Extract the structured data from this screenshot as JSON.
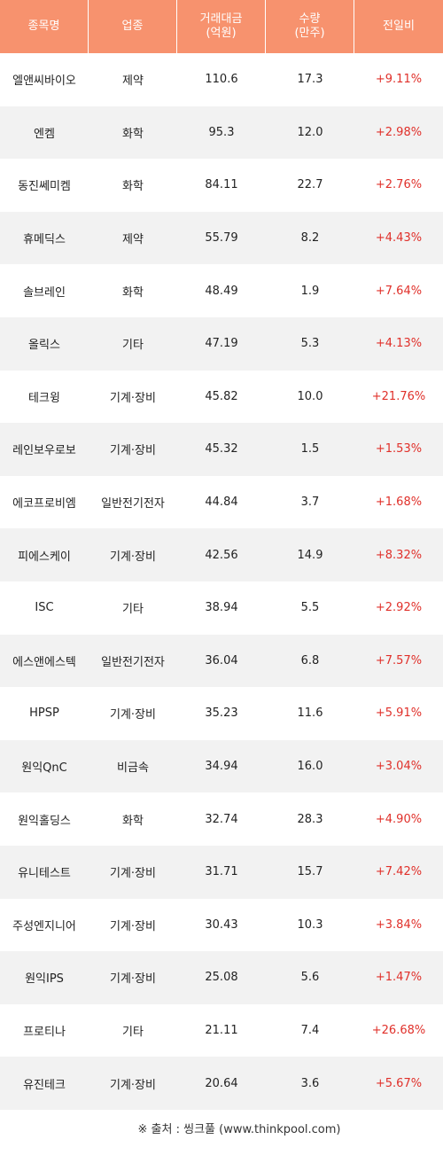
{
  "header": {
    "name": "종목명",
    "sector": "업종",
    "amount": "거래대금\n(억원)",
    "volume": "수량\n(만주)",
    "change": "전일비"
  },
  "rows": [
    {
      "name": "엘앤씨바이오",
      "sector": "제약",
      "amount": "110.6",
      "volume": "17.3",
      "change": "+9.11%"
    },
    {
      "name": "엔켐",
      "sector": "화학",
      "amount": "95.3",
      "volume": "12.0",
      "change": "+2.98%"
    },
    {
      "name": "동진쎄미켐",
      "sector": "화학",
      "amount": "84.11",
      "volume": "22.7",
      "change": "+2.76%"
    },
    {
      "name": "휴메딕스",
      "sector": "제약",
      "amount": "55.79",
      "volume": "8.2",
      "change": "+4.43%"
    },
    {
      "name": "솔브레인",
      "sector": "화학",
      "amount": "48.49",
      "volume": "1.9",
      "change": "+7.64%"
    },
    {
      "name": "올릭스",
      "sector": "기타",
      "amount": "47.19",
      "volume": "5.3",
      "change": "+4.13%"
    },
    {
      "name": "테크윙",
      "sector": "기계·장비",
      "amount": "45.82",
      "volume": "10.0",
      "change": "+21.76%"
    },
    {
      "name": "레인보우로보",
      "sector": "기계·장비",
      "amount": "45.32",
      "volume": "1.5",
      "change": "+1.53%"
    },
    {
      "name": "에코프로비엠",
      "sector": "일반전기전자",
      "amount": "44.84",
      "volume": "3.7",
      "change": "+1.68%"
    },
    {
      "name": "피에스케이",
      "sector": "기계·장비",
      "amount": "42.56",
      "volume": "14.9",
      "change": "+8.32%"
    },
    {
      "name": "ISC",
      "sector": "기타",
      "amount": "38.94",
      "volume": "5.5",
      "change": "+2.92%"
    },
    {
      "name": "에스앤에스텍",
      "sector": "일반전기전자",
      "amount": "36.04",
      "volume": "6.8",
      "change": "+7.57%"
    },
    {
      "name": "HPSP",
      "sector": "기계·장비",
      "amount": "35.23",
      "volume": "11.6",
      "change": "+5.91%"
    },
    {
      "name": "원익QnC",
      "sector": "비금속",
      "amount": "34.94",
      "volume": "16.0",
      "change": "+3.04%"
    },
    {
      "name": "원익홀딩스",
      "sector": "화학",
      "amount": "32.74",
      "volume": "28.3",
      "change": "+4.90%"
    },
    {
      "name": "유니테스트",
      "sector": "기계·장비",
      "amount": "31.71",
      "volume": "15.7",
      "change": "+7.42%"
    },
    {
      "name": "주성엔지니어",
      "sector": "기계·장비",
      "amount": "30.43",
      "volume": "10.3",
      "change": "+3.84%"
    },
    {
      "name": "원익IPS",
      "sector": "기계·장비",
      "amount": "25.08",
      "volume": "5.6",
      "change": "+1.47%"
    },
    {
      "name": "프로티나",
      "sector": "기타",
      "amount": "21.11",
      "volume": "7.4",
      "change": "+26.68%"
    },
    {
      "name": "유진테크",
      "sector": "기계·장비",
      "amount": "20.64",
      "volume": "3.6",
      "change": "+5.67%"
    }
  ],
  "footer": {
    "source": "※ 출처 : 씽크풀 (www.thinkpool.com)"
  },
  "colors": {
    "header_bg": "#f7926e",
    "header_text": "#ffffff",
    "stripe": "#f2f2f2",
    "positive": "#e0302a"
  }
}
